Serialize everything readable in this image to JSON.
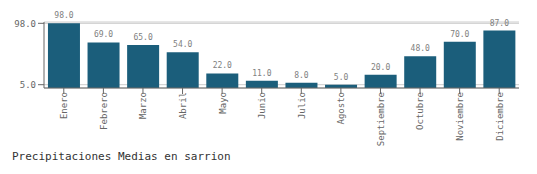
{
  "chart_data": {
    "type": "bar",
    "title": "Precipitaciones Medias en sarrion",
    "categories": [
      "Enero",
      "Febrero",
      "Marzo",
      "Abril",
      "Mayo",
      "Junio",
      "Julio",
      "Agosto",
      "Septiembre",
      "Octubre",
      "Noviembre",
      "Diciembre"
    ],
    "values": [
      98.0,
      69.0,
      65.0,
      54.0,
      22.0,
      11.0,
      8.0,
      5.0,
      20.0,
      48.0,
      70.0,
      87.0
    ],
    "value_labels": [
      "98.0",
      "69.0",
      "65.0",
      "54.0",
      "22.0",
      "11.0",
      "8.0",
      "5.0",
      "20.0",
      "48.0",
      "70.0",
      "87.0"
    ],
    "color": "#1b5e7b",
    "ylim": [
      0,
      100
    ],
    "yticks": [
      {
        "value": 5.0,
        "label": "5.0"
      },
      {
        "value": 98.0,
        "label": "98.0"
      }
    ],
    "grid": true,
    "data_labels": true
  }
}
